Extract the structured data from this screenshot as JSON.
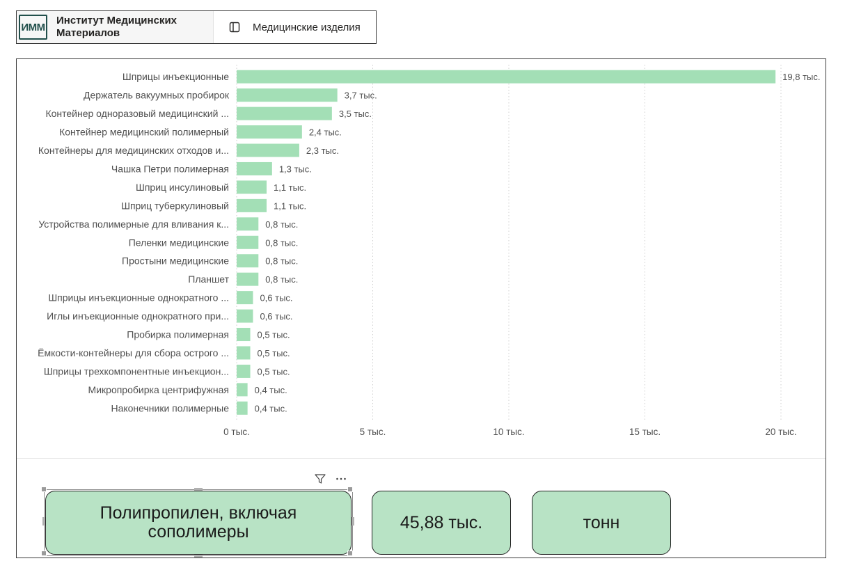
{
  "header": {
    "logo_text": "ИММ",
    "org_name": "Институт Медицинских\nМатериалов",
    "nav_label": "Медицинские изделия",
    "nav_icon": "panel-icon"
  },
  "chart_data": {
    "type": "bar",
    "orientation": "horizontal",
    "categories": [
      "Шприцы инъекционные",
      "Держатель вакуумных пробирок",
      "Контейнер одноразовый медицинский ...",
      "Контейнер медицинский полимерный",
      "Контейнеры для медицинских отходов и...",
      "Чашка Петри полимерная",
      "Шприц инсулиновый",
      "Шприц туберкулиновый",
      "Устройства полимерные для вливания к...",
      "Пеленки медицинские",
      "Простыни медицинские",
      "Планшет",
      "Шприцы инъекционные однократного ...",
      "Иглы инъекционные однократного при...",
      "Пробирка полимерная",
      "Ёмкости-контейнеры для сбора острого ...",
      "Шприцы трехкомпонентные инъекцион...",
      "Микропробирка центрифужная",
      "Наконечники полимерные"
    ],
    "values": [
      19800,
      3700,
      3500,
      2400,
      2300,
      1300,
      1100,
      1100,
      800,
      800,
      800,
      800,
      600,
      600,
      500,
      500,
      500,
      400,
      400
    ],
    "value_labels": [
      "19,8 тыс.",
      "3,7 тыс.",
      "3,5 тыс.",
      "2,4 тыс.",
      "2,3 тыс.",
      "1,3 тыс.",
      "1,1 тыс.",
      "1,1 тыс.",
      "0,8 тыс.",
      "0,8 тыс.",
      "0,8 тыс.",
      "0,8 тыс.",
      "0,6 тыс.",
      "0,6 тыс.",
      "0,5 тыс.",
      "0,5 тыс.",
      "0,5 тыс.",
      "0,4 тыс.",
      "0,4 тыс."
    ],
    "x_ticks": [
      0,
      5000,
      10000,
      15000,
      20000
    ],
    "x_tick_labels": [
      "0 тыс.",
      "5 тыс.",
      "10 тыс.",
      "15 тыс.",
      "20 тыс."
    ],
    "xlim": [
      0,
      20000
    ],
    "grid": "vertical dotted",
    "bar_color": "#a3dfb6",
    "title": "",
    "xlabel": "",
    "ylabel": ""
  },
  "cards": [
    {
      "text": "Полипропилен, включая сополимеры"
    },
    {
      "text": "45,88 тыс."
    },
    {
      "text": "тонн"
    }
  ],
  "visual_header": {
    "filter_icon": "filter-icon",
    "more_icon": "more-options-icon"
  },
  "colors": {
    "card_fill": "#b8e3c5",
    "bar": "#a3dfb6",
    "logo": "#214f4b"
  }
}
